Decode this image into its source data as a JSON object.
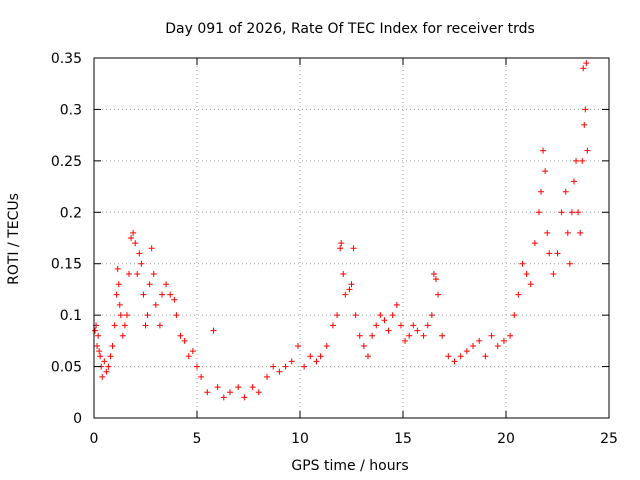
{
  "chart_data": {
    "type": "scatter",
    "title": "Day 091 of 2026, Rate Of TEC Index for receiver trds",
    "xlabel": "GPS time / hours",
    "ylabel": "ROTI / TECUs",
    "xlim": [
      0,
      25
    ],
    "ylim": [
      0,
      0.35
    ],
    "x_ticks": [
      "0",
      "5",
      "10",
      "15",
      "20",
      "25"
    ],
    "y_ticks": [
      "0",
      "0.05",
      "0.1",
      "0.15",
      "0.2",
      "0.25",
      "0.3",
      "0.35"
    ],
    "grid": true,
    "marker": "plus",
    "colors": {
      "points": "#ff0000",
      "grid": "#a0a0a0",
      "frame": "#000000"
    },
    "series": [
      {
        "points": [
          [
            0.05,
            0.085
          ],
          [
            0.1,
            0.09
          ],
          [
            0.15,
            0.07
          ],
          [
            0.2,
            0.08
          ],
          [
            0.25,
            0.065
          ],
          [
            0.3,
            0.06
          ],
          [
            0.35,
            0.05
          ],
          [
            0.4,
            0.04
          ],
          [
            0.5,
            0.055
          ],
          [
            0.6,
            0.045
          ],
          [
            0.7,
            0.05
          ],
          [
            0.8,
            0.06
          ],
          [
            0.9,
            0.07
          ],
          [
            1.0,
            0.09
          ],
          [
            1.1,
            0.12
          ],
          [
            1.15,
            0.145
          ],
          [
            1.2,
            0.13
          ],
          [
            1.25,
            0.11
          ],
          [
            1.3,
            0.1
          ],
          [
            1.4,
            0.08
          ],
          [
            1.5,
            0.09
          ],
          [
            1.6,
            0.1
          ],
          [
            1.7,
            0.14
          ],
          [
            1.8,
            0.175
          ],
          [
            1.9,
            0.18
          ],
          [
            2.0,
            0.17
          ],
          [
            2.1,
            0.14
          ],
          [
            2.2,
            0.16
          ],
          [
            2.3,
            0.15
          ],
          [
            2.4,
            0.12
          ],
          [
            2.5,
            0.09
          ],
          [
            2.6,
            0.1
          ],
          [
            2.7,
            0.13
          ],
          [
            2.8,
            0.165
          ],
          [
            2.9,
            0.14
          ],
          [
            3.0,
            0.11
          ],
          [
            3.2,
            0.09
          ],
          [
            3.3,
            0.12
          ],
          [
            3.5,
            0.13
          ],
          [
            3.7,
            0.12
          ],
          [
            3.9,
            0.115
          ],
          [
            4.0,
            0.1
          ],
          [
            4.2,
            0.08
          ],
          [
            4.4,
            0.075
          ],
          [
            4.6,
            0.06
          ],
          [
            4.8,
            0.065
          ],
          [
            5.0,
            0.05
          ],
          [
            5.2,
            0.04
          ],
          [
            5.5,
            0.025
          ],
          [
            5.8,
            0.085
          ],
          [
            6.0,
            0.03
          ],
          [
            6.3,
            0.02
          ],
          [
            6.6,
            0.025
          ],
          [
            7.0,
            0.03
          ],
          [
            7.3,
            0.02
          ],
          [
            7.7,
            0.03
          ],
          [
            8.0,
            0.025
          ],
          [
            8.4,
            0.04
          ],
          [
            8.7,
            0.05
          ],
          [
            9.0,
            0.045
          ],
          [
            9.3,
            0.05
          ],
          [
            9.6,
            0.055
          ],
          [
            9.9,
            0.07
          ],
          [
            10.2,
            0.05
          ],
          [
            10.5,
            0.06
          ],
          [
            10.8,
            0.055
          ],
          [
            11.0,
            0.06
          ],
          [
            11.3,
            0.07
          ],
          [
            11.6,
            0.09
          ],
          [
            11.8,
            0.1
          ],
          [
            11.95,
            0.165
          ],
          [
            12.0,
            0.17
          ],
          [
            12.1,
            0.14
          ],
          [
            12.2,
            0.12
          ],
          [
            12.4,
            0.125
          ],
          [
            12.5,
            0.13
          ],
          [
            12.6,
            0.165
          ],
          [
            12.7,
            0.1
          ],
          [
            12.9,
            0.08
          ],
          [
            13.1,
            0.07
          ],
          [
            13.3,
            0.06
          ],
          [
            13.5,
            0.08
          ],
          [
            13.7,
            0.09
          ],
          [
            13.9,
            0.1
          ],
          [
            14.1,
            0.095
          ],
          [
            14.3,
            0.085
          ],
          [
            14.5,
            0.1
          ],
          [
            14.7,
            0.11
          ],
          [
            14.9,
            0.09
          ],
          [
            15.1,
            0.075
          ],
          [
            15.3,
            0.08
          ],
          [
            15.5,
            0.09
          ],
          [
            15.7,
            0.085
          ],
          [
            16.0,
            0.08
          ],
          [
            16.2,
            0.09
          ],
          [
            16.4,
            0.1
          ],
          [
            16.5,
            0.14
          ],
          [
            16.6,
            0.135
          ],
          [
            16.7,
            0.12
          ],
          [
            16.9,
            0.08
          ],
          [
            17.2,
            0.06
          ],
          [
            17.5,
            0.055
          ],
          [
            17.8,
            0.06
          ],
          [
            18.1,
            0.065
          ],
          [
            18.4,
            0.07
          ],
          [
            18.7,
            0.075
          ],
          [
            19.0,
            0.06
          ],
          [
            19.3,
            0.08
          ],
          [
            19.6,
            0.07
          ],
          [
            19.9,
            0.075
          ],
          [
            20.2,
            0.08
          ],
          [
            20.4,
            0.1
          ],
          [
            20.6,
            0.12
          ],
          [
            20.8,
            0.15
          ],
          [
            21.0,
            0.14
          ],
          [
            21.2,
            0.13
          ],
          [
            21.4,
            0.17
          ],
          [
            21.6,
            0.2
          ],
          [
            21.7,
            0.22
          ],
          [
            21.8,
            0.26
          ],
          [
            21.9,
            0.24
          ],
          [
            22.0,
            0.18
          ],
          [
            22.1,
            0.16
          ],
          [
            22.3,
            0.14
          ],
          [
            22.5,
            0.16
          ],
          [
            22.7,
            0.2
          ],
          [
            22.9,
            0.22
          ],
          [
            23.0,
            0.18
          ],
          [
            23.1,
            0.15
          ],
          [
            23.2,
            0.2
          ],
          [
            23.3,
            0.23
          ],
          [
            23.4,
            0.25
          ],
          [
            23.5,
            0.2
          ],
          [
            23.6,
            0.18
          ],
          [
            23.7,
            0.25
          ],
          [
            23.75,
            0.34
          ],
          [
            23.8,
            0.285
          ],
          [
            23.85,
            0.3
          ],
          [
            23.9,
            0.345
          ],
          [
            23.95,
            0.26
          ]
        ]
      }
    ]
  }
}
